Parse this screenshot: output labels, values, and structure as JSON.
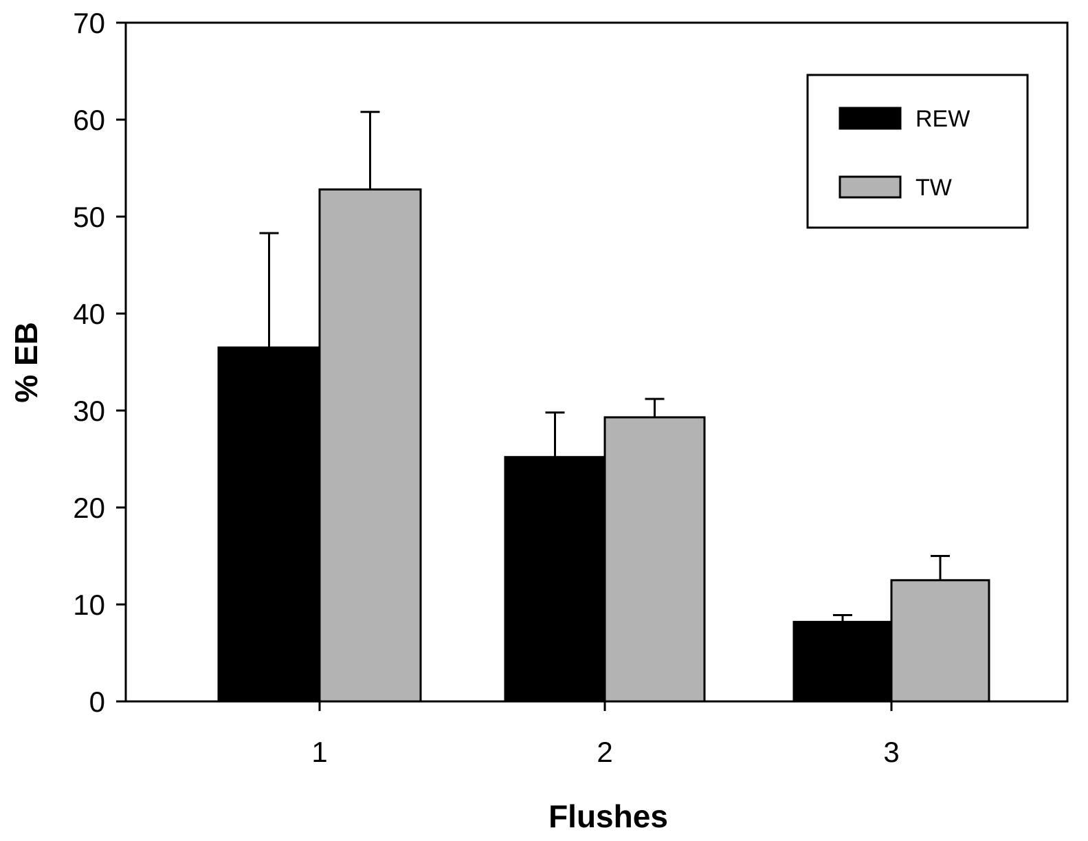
{
  "chart_data": {
    "type": "bar",
    "title": "",
    "xlabel": "Flushes",
    "ylabel": "% EB",
    "categories": [
      "1",
      "2",
      "3"
    ],
    "ylim": [
      0,
      70
    ],
    "yticks": [
      0,
      10,
      20,
      30,
      40,
      50,
      60,
      70
    ],
    "grid": false,
    "legend_position": "top-right",
    "series": [
      {
        "name": "REW",
        "color": "#000000",
        "values": [
          36.5,
          25.2,
          8.2
        ],
        "errors": [
          11.8,
          4.6,
          0.7
        ]
      },
      {
        "name": "TW",
        "color": "#b3b3b3",
        "values": [
          52.8,
          29.3,
          12.5
        ],
        "errors": [
          8.0,
          1.9,
          2.5
        ]
      }
    ]
  }
}
